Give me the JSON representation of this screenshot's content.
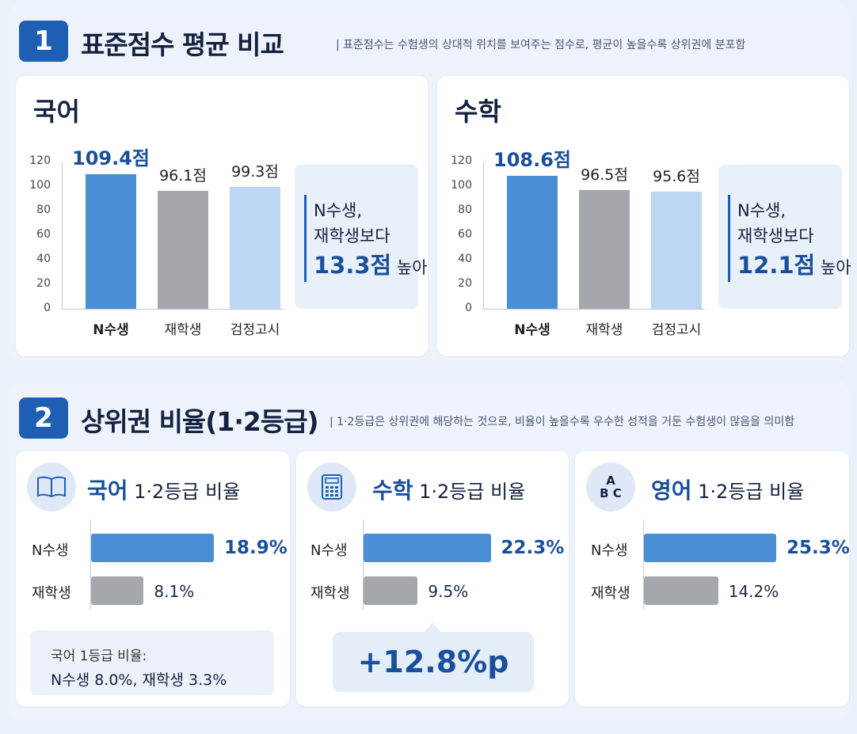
{
  "section1": {
    "number": "1",
    "title": "표준점수 평균 비교",
    "description": "| 표준점수는 수험생의 상대적 위치를 보여주는 점수로, 평균이 높을수록 상위권에 분포함"
  },
  "section2": {
    "number": "2",
    "title": "상위권 비율(1·2등급)",
    "description": "| 1·2등급은 상위권에 해당하는 것으로, 비율이 높을수록 우수한 성적을 거둔 수험생이 많음을 의미함"
  },
  "korean_std": {
    "title": "국어",
    "value_labels": [
      "109.4점",
      "96.1점",
      "99.3점"
    ],
    "callout": {
      "line1": "N수생,",
      "line2": "재학생보다",
      "big": "13.3점",
      "suffix": " 높아"
    }
  },
  "math_std": {
    "title": "수학",
    "value_labels": [
      "108.6점",
      "96.5점",
      "95.6점"
    ],
    "callout": {
      "line1": "N수생,",
      "line2": "재학생보다",
      "big": "12.1점",
      "suffix": " 높아"
    }
  },
  "korean_rate": {
    "subject": "국어",
    "suffix": " 1·2등급 비율",
    "value_labels": [
      "18.9%",
      "8.1%"
    ],
    "note_line1": "국어 1등급 비율:",
    "note_line2": "N수생 8.0%, 재학생 3.3%"
  },
  "math_rate": {
    "subject": "수학",
    "suffix": " 1·2등급 비율",
    "value_labels": [
      "22.3%",
      "9.5%"
    ],
    "diff": "+12.8%p"
  },
  "english_rate": {
    "subject": "영어",
    "suffix": " 1·2등급 비율",
    "icon_text_top": "A",
    "icon_text_bottom": "B C",
    "value_labels": [
      "25.3%",
      "14.2%"
    ]
  },
  "colors": {
    "n_student": "#4a8ed6",
    "enrolled": "#a4a7ab",
    "geomjeong": "#bcd6f4",
    "accent": "#1a4f9c",
    "badge": "#1f5fb3"
  },
  "chart_data": [
    {
      "type": "bar",
      "title": "국어",
      "categories": [
        "N수생",
        "재학생",
        "검정고시"
      ],
      "values": [
        109.4,
        96.1,
        99.3
      ],
      "ylim": [
        0,
        120
      ],
      "yticks": [
        0,
        20,
        40,
        60,
        80,
        100,
        120
      ]
    },
    {
      "type": "bar",
      "title": "수학",
      "categories": [
        "N수생",
        "재학생",
        "검정고시"
      ],
      "values": [
        108.6,
        96.5,
        95.6
      ],
      "ylim": [
        0,
        120
      ],
      "yticks": [
        0,
        20,
        40,
        60,
        80,
        100,
        120
      ]
    },
    {
      "type": "bar",
      "orientation": "horizontal",
      "title": "국어 1·2등급 비율",
      "categories": [
        "N수생",
        "재학생"
      ],
      "values": [
        18.9,
        8.1
      ],
      "unit": "%"
    },
    {
      "type": "bar",
      "orientation": "horizontal",
      "title": "수학 1·2등급 비율",
      "categories": [
        "N수생",
        "재학생"
      ],
      "values": [
        22.3,
        9.5
      ],
      "unit": "%"
    },
    {
      "type": "bar",
      "orientation": "horizontal",
      "title": "영어 1·2등급 비율",
      "categories": [
        "N수생",
        "재학생"
      ],
      "values": [
        25.3,
        14.2
      ],
      "unit": "%"
    }
  ]
}
